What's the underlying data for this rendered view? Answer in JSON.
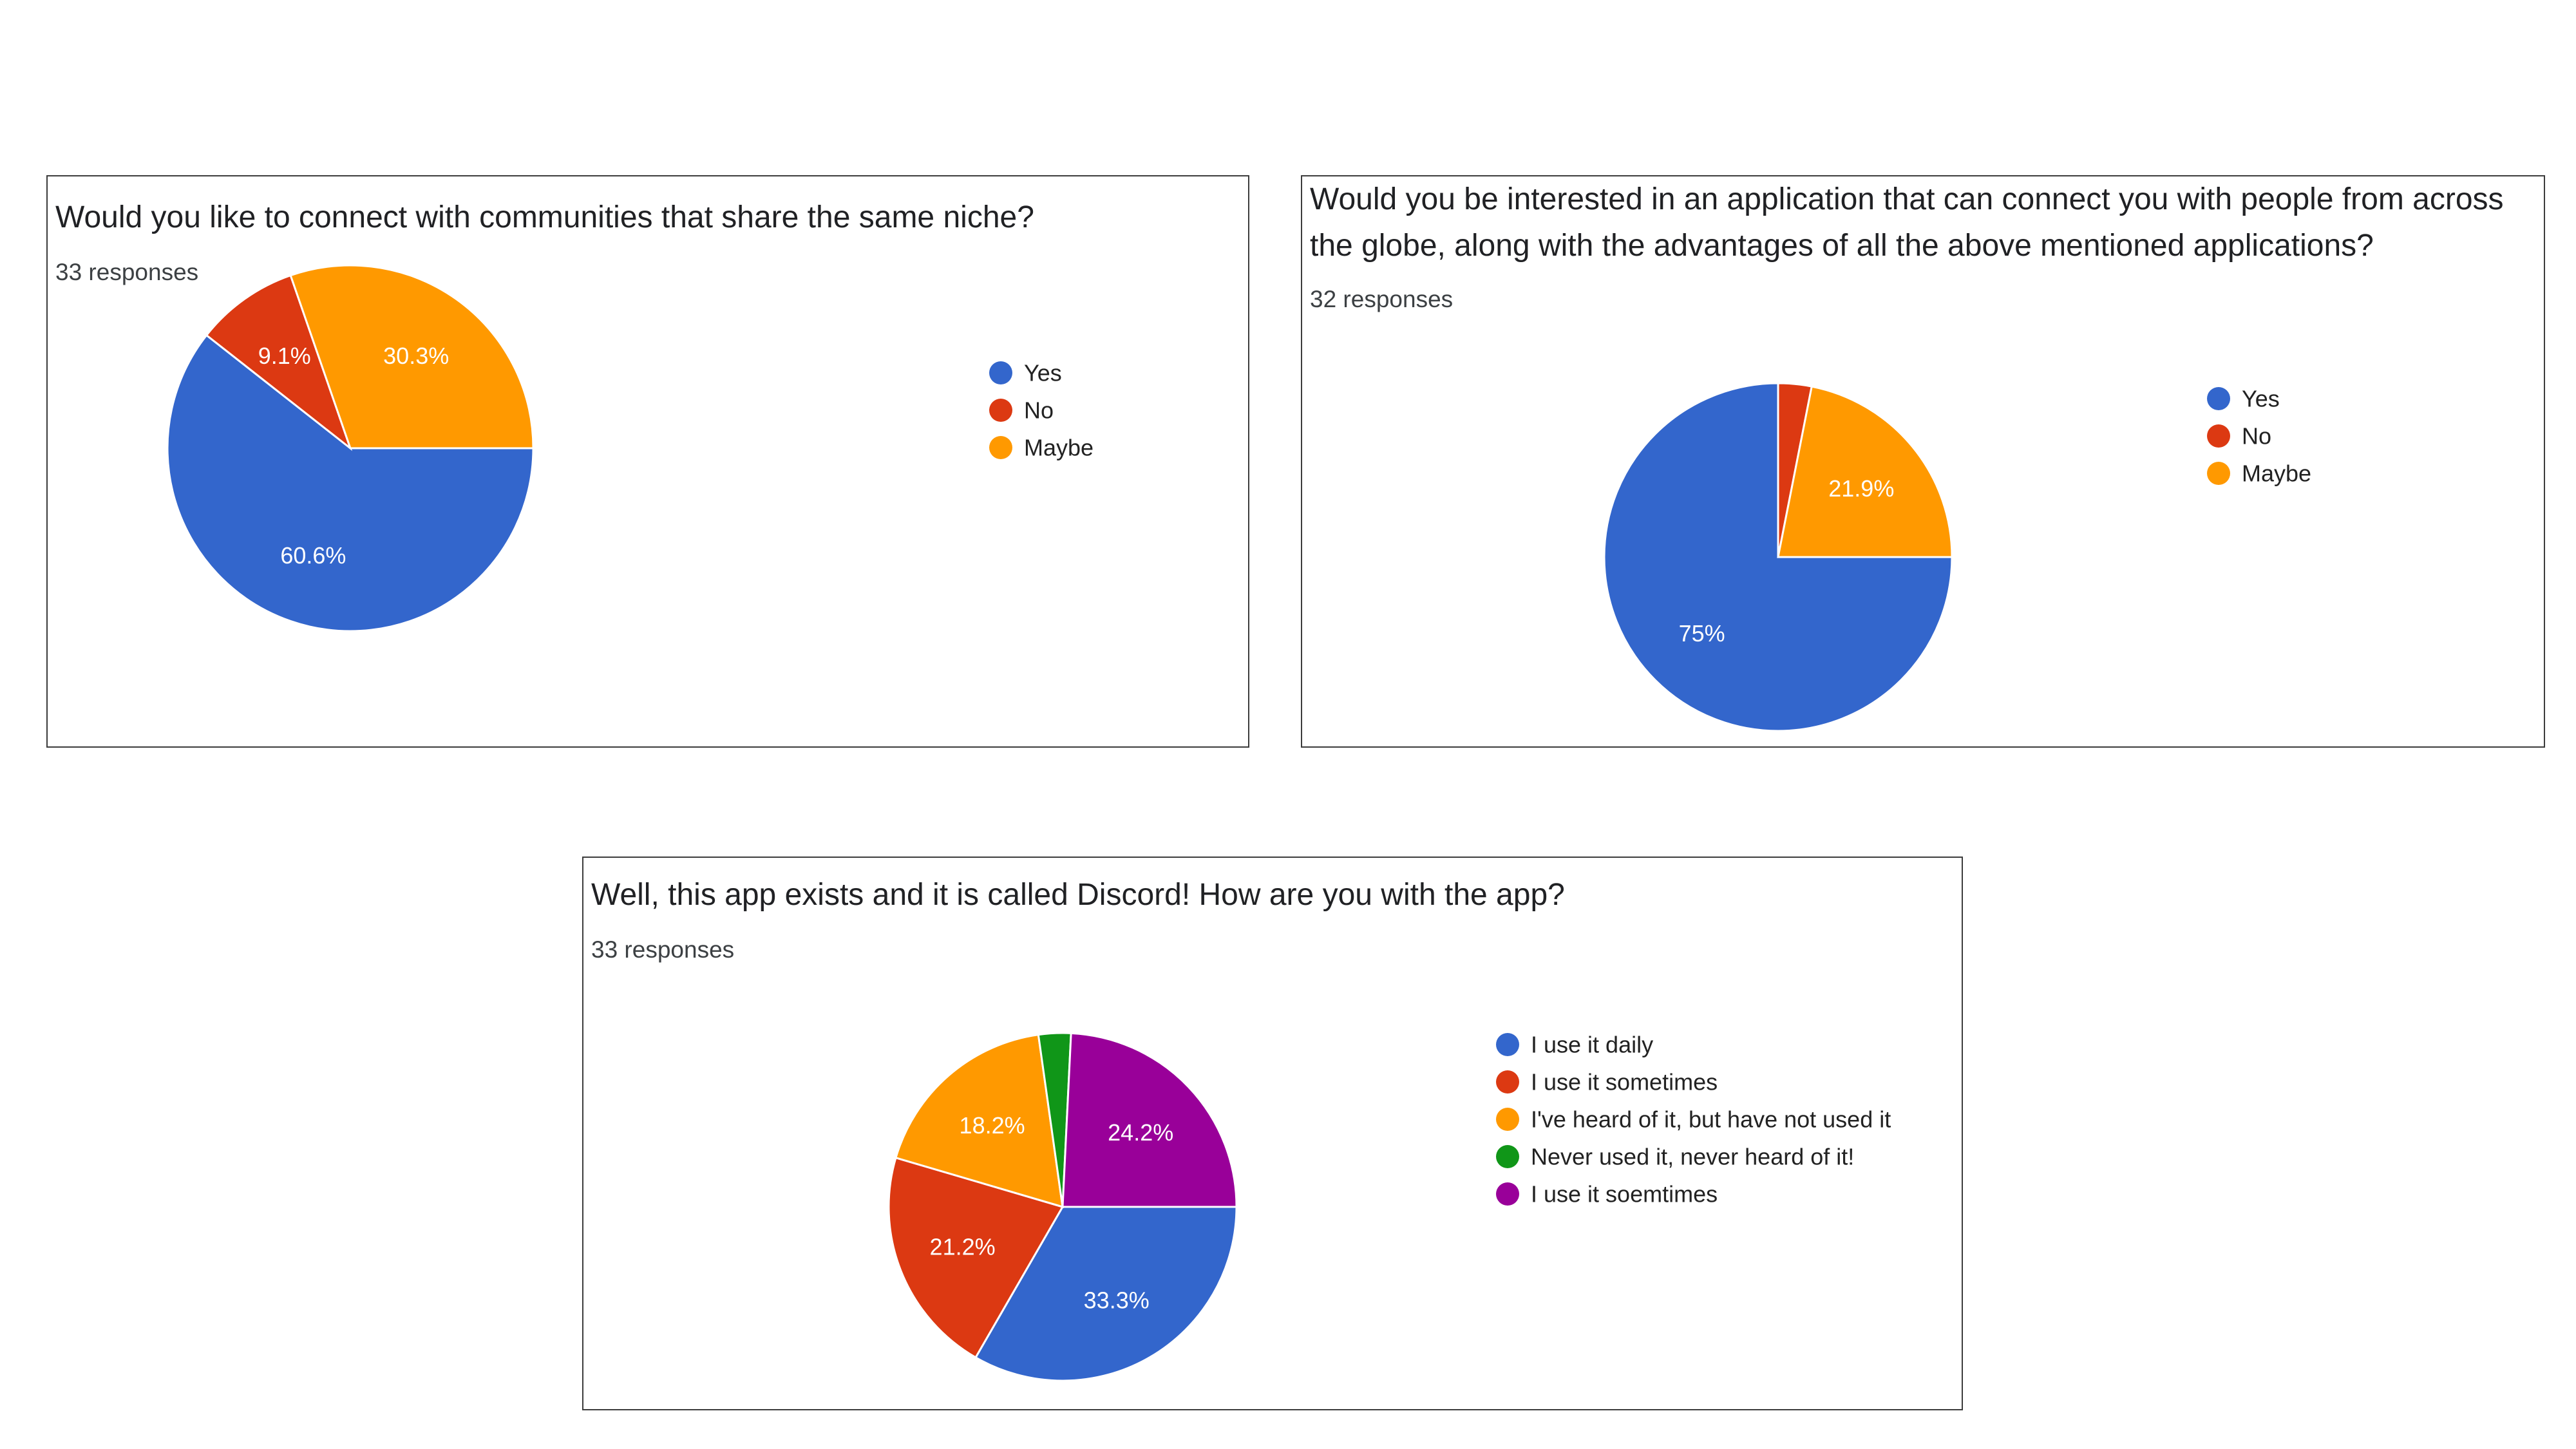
{
  "chart_data": [
    {
      "type": "pie",
      "title": "Would you like to connect with communities that share the same niche?",
      "subtitle": "33 responses",
      "categories": [
        "Yes",
        "No",
        "Maybe"
      ],
      "values": [
        60.6,
        9.1,
        30.3
      ],
      "data_labels": [
        "60.6%",
        "9.1%",
        "30.3%"
      ],
      "colors": [
        "#3366cc",
        "#dc3912",
        "#ff9900"
      ],
      "legend_position": "right"
    },
    {
      "type": "pie",
      "title": "Would you be interested in an application that can connect you with people from across the globe, along with the advantages of all the above mentioned applications?",
      "subtitle": "32 responses",
      "categories": [
        "Yes",
        "No",
        "Maybe"
      ],
      "values": [
        75,
        3.1,
        21.9
      ],
      "data_labels": [
        "75%",
        "",
        "21.9%"
      ],
      "colors": [
        "#3366cc",
        "#dc3912",
        "#ff9900"
      ],
      "legend_position": "right"
    },
    {
      "type": "pie",
      "title": "Well, this app exists and it is called Discord! How are you with the app?",
      "subtitle": "33 responses",
      "categories": [
        "I use it daily",
        "I use it sometimes",
        "I've heard of it, but have not used it",
        "Never used it, never heard of it!",
        "I use it soemtimes"
      ],
      "values": [
        33.3,
        21.2,
        18.2,
        3.0,
        24.2
      ],
      "data_labels": [
        "33.3%",
        "21.2%",
        "18.2%",
        "",
        "24.2%"
      ],
      "colors": [
        "#3366cc",
        "#dc3912",
        "#ff9900",
        "#109618",
        "#990099"
      ],
      "legend_position": "right"
    }
  ]
}
